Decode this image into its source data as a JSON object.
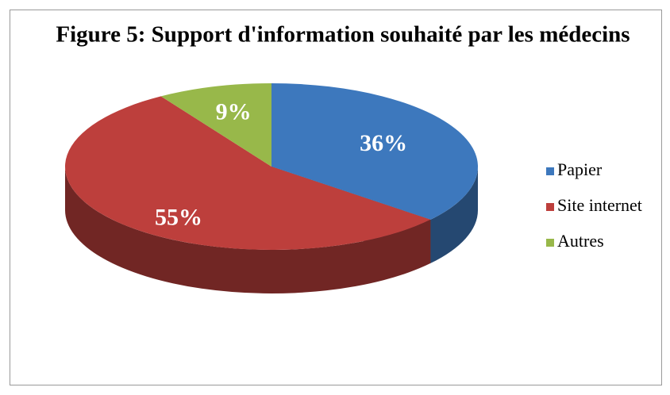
{
  "chart_data": {
    "type": "pie",
    "title": "Figure 5: Support d'information souhaité par les médecins",
    "categories": [
      "Papier",
      "Site internet",
      "Autres"
    ],
    "values": [
      36,
      55,
      9
    ],
    "value_labels": [
      "36%",
      "55%",
      "9%"
    ],
    "colors": [
      "#3d78bd",
      "#bd3f3c",
      "#98b84a"
    ],
    "legend": "right"
  }
}
